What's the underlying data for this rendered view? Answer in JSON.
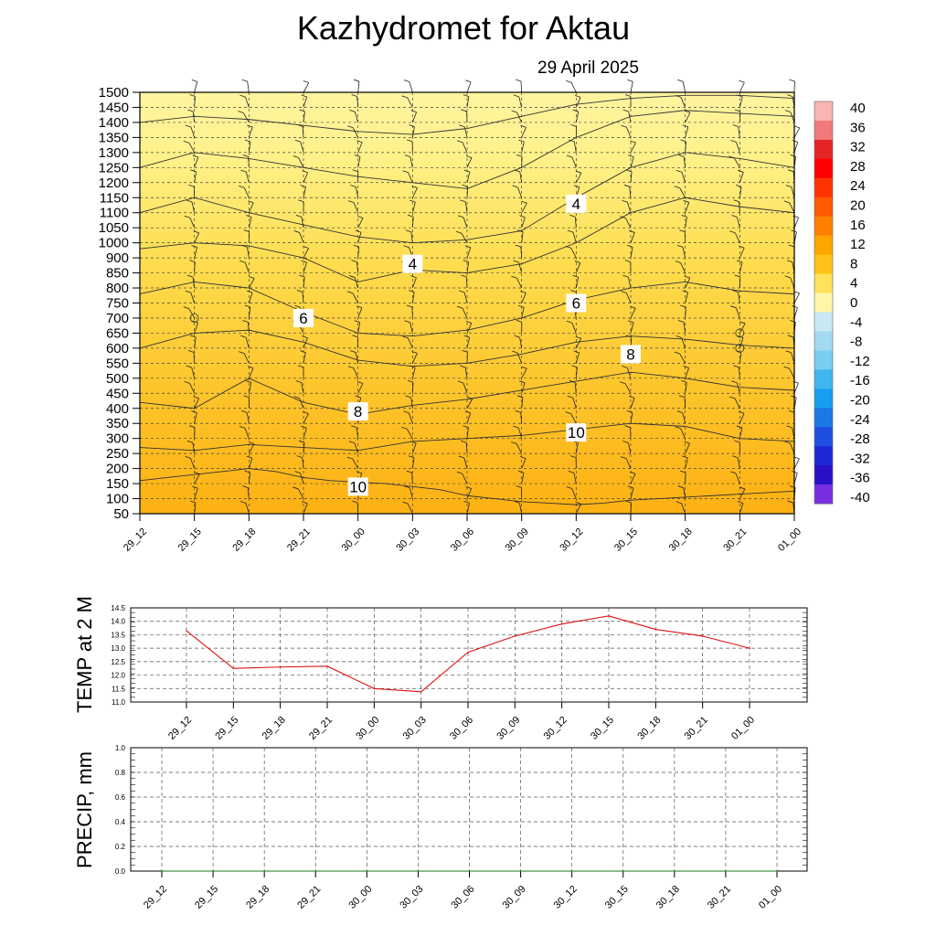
{
  "header": {
    "title": "Kazhydromet  for Aktau",
    "date": "29 April 2025"
  },
  "time_labels": [
    "29_12",
    "29_15",
    "29_18",
    "29_21",
    "30_00",
    "30_03",
    "30_06",
    "30_09",
    "30_12",
    "30_15",
    "30_18",
    "30_21",
    "01_00"
  ],
  "chart_data": [
    {
      "type": "heatmap",
      "title": "",
      "xlabel": "",
      "ylabel": "",
      "x": [
        "29_12",
        "29_15",
        "29_18",
        "29_21",
        "30_00",
        "30_03",
        "30_06",
        "30_09",
        "30_12",
        "30_15",
        "30_18",
        "30_21",
        "01_00"
      ],
      "y_levels": [
        50,
        100,
        150,
        200,
        250,
        300,
        350,
        400,
        450,
        500,
        550,
        600,
        650,
        700,
        750,
        800,
        850,
        900,
        1000,
        1050,
        1100,
        1150,
        1200,
        1250,
        1300,
        1350,
        1400,
        1450,
        1500
      ],
      "colorbar": {
        "levels": [
          40,
          36,
          32,
          28,
          24,
          20,
          16,
          12,
          8,
          4,
          0,
          -4,
          -8,
          -12,
          -16,
          -20,
          -24,
          -28,
          -32,
          -36,
          -40
        ],
        "colors": [
          "#f9b4b4",
          "#f07a7a",
          "#e52525",
          "#ff0000",
          "#ff3300",
          "#ff5a00",
          "#ff7f00",
          "#ffa500",
          "#ffc21a",
          "#ffe15a",
          "#fff6a8",
          "#c9e8f4",
          "#a3daf2",
          "#7bcdf0",
          "#3fb7ee",
          "#169ff0",
          "#1c78e6",
          "#1f4fe0",
          "#1f28d6",
          "#2a10c9",
          "#7a2ee0"
        ]
      },
      "contour_labels": [
        {
          "text": "4",
          "x": "30_12",
          "level": 1130
        },
        {
          "text": "4",
          "x": "30_03",
          "level": 880
        },
        {
          "text": "6",
          "x": "29_21",
          "level": 700
        },
        {
          "text": "6",
          "x": "30_12",
          "level": 750
        },
        {
          "text": "8",
          "x": "30_15",
          "level": 580
        },
        {
          "text": "8",
          "x": "30_00",
          "level": 390
        },
        {
          "text": "10",
          "x": "30_12",
          "level": 320
        },
        {
          "text": "10",
          "x": "30_00",
          "level": 140
        }
      ],
      "contour_lines": [
        {
          "x": [
            0,
            0.5,
            1,
            1.5,
            2,
            2.5,
            3,
            3.5,
            4,
            4.5,
            5,
            5.5,
            6,
            6.5,
            7,
            7.5,
            8,
            8.5,
            9,
            9.5,
            10,
            10.5,
            11,
            11.5,
            12
          ],
          "y": [
            160,
            170,
            180,
            190,
            200,
            190,
            170,
            160,
            155,
            150,
            140,
            130,
            110,
            100,
            90,
            85,
            80,
            85,
            95,
            100,
            105,
            110,
            115,
            120,
            125
          ]
        },
        {
          "x": [
            0,
            1,
            2,
            3,
            4,
            5,
            6,
            7,
            8,
            9,
            10,
            11,
            12
          ],
          "y": [
            270,
            260,
            280,
            270,
            260,
            290,
            300,
            310,
            330,
            350,
            340,
            300,
            290
          ]
        },
        {
          "x": [
            0,
            1,
            2,
            3,
            4,
            5,
            6,
            7,
            8,
            9,
            10,
            11,
            12
          ],
          "y": [
            420,
            400,
            500,
            420,
            380,
            410,
            430,
            460,
            490,
            520,
            500,
            470,
            460
          ]
        },
        {
          "x": [
            0,
            1,
            2,
            3,
            4,
            5,
            6,
            7,
            8,
            9,
            10,
            11,
            12
          ],
          "y": [
            600,
            650,
            660,
            620,
            560,
            540,
            550,
            580,
            620,
            640,
            630,
            610,
            600
          ]
        },
        {
          "x": [
            0,
            1,
            2,
            3,
            4,
            5,
            6,
            7,
            8,
            9,
            10,
            11,
            12
          ],
          "y": [
            780,
            820,
            800,
            720,
            650,
            640,
            660,
            700,
            760,
            800,
            820,
            790,
            780
          ]
        },
        {
          "x": [
            0,
            1,
            2,
            3,
            4,
            5,
            6,
            7,
            8,
            9,
            10,
            11,
            12
          ],
          "y": [
            960,
            1000,
            980,
            900,
            820,
            860,
            850,
            880,
            1000,
            1100,
            1150,
            1120,
            1100
          ]
        },
        {
          "x": [
            0,
            1,
            2,
            3,
            4,
            5,
            6,
            7,
            8,
            9,
            10,
            11,
            12
          ],
          "y": [
            1100,
            1150,
            1100,
            1060,
            1020,
            1000,
            1010,
            1040,
            1150,
            1250,
            1300,
            1280,
            1250
          ]
        },
        {
          "x": [
            0,
            1,
            2,
            3,
            4,
            5,
            6,
            7,
            8,
            9,
            10,
            11,
            12
          ],
          "y": [
            1250,
            1300,
            1280,
            1250,
            1220,
            1200,
            1180,
            1250,
            1350,
            1420,
            1440,
            1430,
            1420
          ]
        },
        {
          "x": [
            0,
            1,
            2,
            3,
            4,
            5,
            6,
            7,
            8,
            9,
            10,
            11,
            12
          ],
          "y": [
            1400,
            1420,
            1410,
            1390,
            1370,
            1360,
            1380,
            1420,
            1460,
            1480,
            1490,
            1490,
            1480
          ]
        }
      ]
    },
    {
      "type": "line",
      "title": "",
      "ylabel": "TEMP at 2 M",
      "xlabel": "",
      "categories": [
        "29_12",
        "29_15",
        "29_18",
        "29_21",
        "30_00",
        "30_03",
        "30_06",
        "30_09",
        "30_12",
        "30_15",
        "30_18",
        "30_21",
        "01_00"
      ],
      "series": [
        {
          "values": [
            13.65,
            12.25,
            12.3,
            12.33,
            11.5,
            11.38,
            12.85,
            13.45,
            13.9,
            14.2,
            13.7,
            13.45,
            13.0
          ]
        }
      ],
      "ylim": [
        11.0,
        14.5
      ],
      "yticks": [
        "11.0",
        "11.5",
        "12.0",
        "12.5",
        "13.0",
        "13.5",
        "14.0",
        "14.5"
      ],
      "grid": true
    },
    {
      "type": "line",
      "title": "",
      "ylabel": "PRECIP, mm",
      "xlabel": "",
      "categories": [
        "29_12",
        "29_15",
        "29_18",
        "29_21",
        "30_00",
        "30_03",
        "30_06",
        "30_09",
        "30_12",
        "30_15",
        "30_18",
        "30_21",
        "01_00"
      ],
      "series": [
        {
          "values": [
            0,
            0,
            0,
            0,
            0,
            0,
            0,
            0,
            0,
            0,
            0,
            0,
            0
          ]
        }
      ],
      "ylim": [
        0.0,
        1.0
      ],
      "yticks": [
        "0.0",
        "0.2",
        "0.4",
        "0.6",
        "0.8",
        "1.0"
      ],
      "grid": true
    }
  ]
}
